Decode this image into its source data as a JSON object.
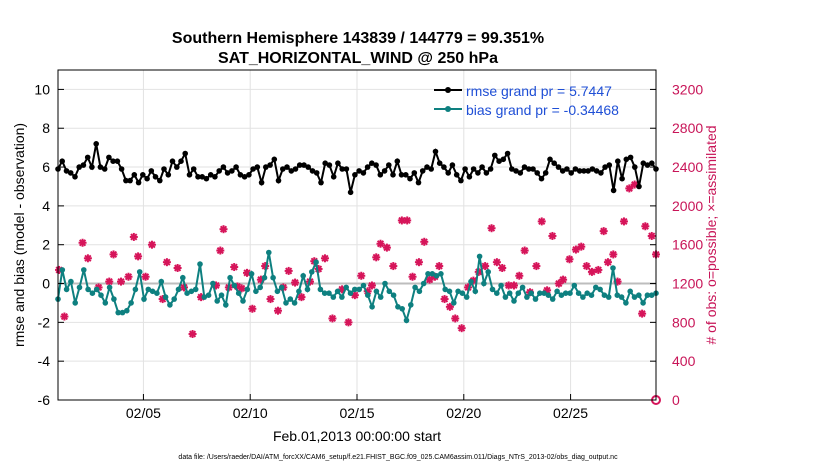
{
  "chart_data": {
    "type": "line",
    "title": "Southern Hemisphere 143839 / 144779 = 99.351%",
    "subtitle": "SAT_HORIZONTAL_WIND @ 250 hPa",
    "xlabel": "Feb.01,2013 00:00:00 start",
    "ylabel_left": "rmse and bias (model - observation)",
    "ylabel_right": "# of obs: o=possible; ×=assimilated",
    "footer": "data file: /Users/raeder/DAI/ATM_forcXX/CAM6_setup/f.e21.FHIST_BGC.f09_025.CAM6assim.011/Diags_NTrS_2013-02/obs_diag_output.nc",
    "xlim": [
      1.0,
      29.0
    ],
    "ylim_left": [
      -6,
      11
    ],
    "ylim_right": [
      0,
      3400
    ],
    "left_ticks": [
      "-6",
      "-4",
      "-2",
      "0",
      "2",
      "4",
      "6",
      "8",
      "10"
    ],
    "right_ticks": [
      "0",
      "400",
      "800",
      "1200",
      "1600",
      "2000",
      "2400",
      "2800",
      "3200"
    ],
    "x_ticks": [
      {
        "pos": 5,
        "label": "02/05"
      },
      {
        "pos": 10,
        "label": "02/10"
      },
      {
        "pos": 15,
        "label": "02/15"
      },
      {
        "pos": 20,
        "label": "02/20"
      },
      {
        "pos": 25,
        "label": "02/25"
      }
    ],
    "grid": true,
    "legend_position": "top-right",
    "colors": {
      "rmse": "#000000",
      "bias": "#0e8080",
      "obs": "#d6155a",
      "right_axis": "#c81558",
      "legend_text": "#1f4fd6",
      "zero_line": "#bdbdbd"
    },
    "series": [
      {
        "name": "rmse grand pr = 5.7447",
        "key": "rmse",
        "axis": "left",
        "values": [
          5.9,
          6.3,
          5.8,
          5.7,
          5.5,
          6.0,
          6.1,
          6.5,
          6.0,
          7.2,
          6.0,
          5.9,
          6.5,
          6.3,
          6.3,
          5.9,
          5.3,
          5.3,
          5.6,
          5.2,
          5.6,
          5.4,
          5.8,
          5.5,
          5.3,
          5.9,
          5.6,
          6.3,
          6.0,
          6.3,
          6.7,
          5.6,
          5.9,
          5.5,
          5.5,
          5.4,
          5.6,
          5.5,
          5.8,
          6.0,
          5.7,
          5.8,
          6.0,
          5.6,
          5.5,
          5.6,
          5.9,
          6.0,
          5.2,
          6.0,
          6.1,
          6.4,
          5.3,
          5.9,
          6.0,
          5.8,
          5.9,
          6.1,
          6.1,
          6.0,
          5.8,
          5.7,
          5.2,
          6.2,
          6.1,
          5.5,
          6.2,
          5.9,
          5.9,
          4.7,
          5.6,
          5.8,
          5.7,
          6.0,
          6.2,
          6.1,
          5.6,
          5.8,
          6.1,
          5.6,
          6.3,
          5.6,
          5.6,
          5.4,
          5.7,
          5.2,
          5.8,
          6.0,
          5.9,
          6.8,
          6.2,
          6.0,
          5.7,
          6.1,
          5.6,
          5.3,
          5.9,
          5.5,
          5.9,
          5.7,
          6.0,
          5.7,
          5.9,
          6.6,
          6.3,
          6.4,
          6.7,
          5.9,
          5.8,
          5.7,
          6.0,
          5.9,
          5.9,
          5.7,
          5.4,
          5.7,
          6.4,
          6.2,
          6.0,
          5.8,
          5.9,
          5.7,
          5.9,
          5.8,
          5.8,
          5.8,
          5.9,
          5.8,
          5.7,
          6.0,
          6.1,
          4.8,
          6.3,
          5.4,
          6.4,
          6.5,
          6.0,
          5.0,
          6.2,
          6.1,
          6.2,
          5.9
        ]
      },
      {
        "name": "bias grand pr = -0.34468",
        "key": "bias",
        "axis": "left",
        "values": [
          -0.8,
          0.7,
          -0.3,
          0.1,
          -1.0,
          -0.2,
          0.7,
          -0.3,
          -0.5,
          -0.3,
          -0.6,
          -1.0,
          -0.2,
          -0.8,
          -1.5,
          -1.5,
          -1.4,
          -1.0,
          -0.3,
          0.6,
          -0.8,
          -0.3,
          -0.4,
          -0.5,
          0.1,
          -0.7,
          -1.1,
          -0.8,
          -0.3,
          0.3,
          -0.5,
          -0.4,
          -0.3,
          1.0,
          -0.7,
          -0.6,
          0.0,
          -0.9,
          -0.6,
          -1.1,
          0.3,
          -0.1,
          -0.5,
          -0.9,
          -0.3,
          0.5,
          -0.4,
          -0.2,
          0.3,
          1.6,
          0.3,
          -0.4,
          -0.2,
          -1.0,
          -0.8,
          -1.0,
          -0.4,
          0.4,
          -0.3,
          0.6,
          1.1,
          -0.3,
          -0.5,
          -0.5,
          -0.7,
          -0.4,
          -0.7,
          -0.2,
          -0.5,
          -0.3,
          -0.3,
          -0.1,
          -0.6,
          -1.2,
          -0.4,
          -0.7,
          0.0,
          -0.4,
          -0.6,
          -1.2,
          -1.3,
          -1.9,
          -1.1,
          -0.2,
          -0.4,
          0.0,
          0.5,
          0.5,
          0.4,
          0.5,
          -0.3,
          -0.4,
          -1.0,
          -0.4,
          -0.5,
          -0.7,
          0.1,
          -0.4,
          1.4,
          0.0,
          0.6,
          -0.3,
          -0.5,
          -0.1,
          -0.7,
          -0.5,
          -0.9,
          -0.5,
          -0.2,
          -0.7,
          -0.5,
          -0.8,
          -0.5,
          -0.5,
          -0.6,
          -0.8,
          -0.4,
          -0.6,
          -0.5,
          -0.5,
          -0.1,
          -0.5,
          -0.7,
          -0.5,
          -0.6,
          -0.2,
          -0.3,
          -0.6,
          -0.7,
          0.8,
          -0.6,
          -0.7,
          -1.0,
          -0.4,
          -0.7,
          -0.6,
          -1.0,
          -0.6,
          -0.6,
          -0.5
        ]
      }
    ],
    "obs_assimilated": {
      "name": "# of obs assimilated",
      "axis": "right",
      "points": [
        [
          1.05,
          1340
        ],
        [
          1.3,
          860
        ],
        [
          2.4,
          1460
        ],
        [
          2.9,
          1160
        ],
        [
          2.15,
          1620
        ],
        [
          3.4,
          1220
        ],
        [
          3.6,
          1500
        ],
        [
          3.95,
          1220
        ],
        [
          4.3,
          1270
        ],
        [
          4.55,
          1680
        ],
        [
          4.75,
          1480
        ],
        [
          5.1,
          1270
        ],
        [
          5.4,
          1600
        ],
        [
          5.9,
          1040
        ],
        [
          6.1,
          1420
        ],
        [
          6.6,
          1360
        ],
        [
          6.9,
          1160
        ],
        [
          7.3,
          680
        ],
        [
          7.7,
          1060
        ],
        [
          8.4,
          1180
        ],
        [
          8.6,
          1540
        ],
        [
          8.75,
          1760
        ],
        [
          9.0,
          1160
        ],
        [
          9.25,
          1370
        ],
        [
          9.4,
          1170
        ],
        [
          9.6,
          1150
        ],
        [
          9.85,
          1310
        ],
        [
          10.1,
          940
        ],
        [
          10.5,
          1240
        ],
        [
          10.7,
          1380
        ],
        [
          10.95,
          1040
        ],
        [
          11.3,
          920
        ],
        [
          11.55,
          1160
        ],
        [
          11.8,
          1330
        ],
        [
          12.1,
          1210
        ],
        [
          12.4,
          1060
        ],
        [
          12.8,
          1220
        ],
        [
          13.0,
          1430
        ],
        [
          13.2,
          1350
        ],
        [
          13.5,
          1460
        ],
        [
          13.85,
          840
        ],
        [
          14.3,
          1140
        ],
        [
          14.6,
          800
        ],
        [
          14.9,
          1080
        ],
        [
          15.2,
          1280
        ],
        [
          15.5,
          1120
        ],
        [
          15.7,
          1180
        ],
        [
          15.9,
          1470
        ],
        [
          16.1,
          1610
        ],
        [
          16.4,
          1570
        ],
        [
          16.7,
          1380
        ],
        [
          17.1,
          1850
        ],
        [
          17.35,
          1850
        ],
        [
          17.6,
          1270
        ],
        [
          17.9,
          1420
        ],
        [
          18.15,
          1630
        ],
        [
          18.4,
          1240
        ],
        [
          18.65,
          1270
        ],
        [
          18.85,
          1380
        ],
        [
          19.1,
          1040
        ],
        [
          19.35,
          960
        ],
        [
          19.6,
          840
        ],
        [
          19.9,
          740
        ],
        [
          20.2,
          1160
        ],
        [
          20.45,
          1230
        ],
        [
          20.7,
          1320
        ],
        [
          21.0,
          1380
        ],
        [
          21.3,
          1770
        ],
        [
          21.55,
          1420
        ],
        [
          21.8,
          1360
        ],
        [
          22.1,
          1180
        ],
        [
          22.35,
          1180
        ],
        [
          22.6,
          1280
        ],
        [
          22.85,
          1540
        ],
        [
          23.1,
          1110
        ],
        [
          23.4,
          1380
        ],
        [
          23.65,
          1840
        ],
        [
          23.9,
          1130
        ],
        [
          24.15,
          1690
        ],
        [
          24.45,
          1200
        ],
        [
          24.65,
          1240
        ],
        [
          24.95,
          1450
        ],
        [
          25.25,
          1550
        ],
        [
          25.5,
          1580
        ],
        [
          25.75,
          1380
        ],
        [
          26.0,
          1320
        ],
        [
          26.3,
          1340
        ],
        [
          26.55,
          1740
        ],
        [
          26.75,
          1420
        ],
        [
          27.0,
          1500
        ],
        [
          27.2,
          1220
        ],
        [
          27.5,
          1840
        ],
        [
          27.75,
          2180
        ],
        [
          28.0,
          2220
        ],
        [
          28.35,
          890
        ],
        [
          28.5,
          1790
        ],
        [
          28.8,
          1690
        ],
        [
          29.0,
          1500
        ]
      ]
    },
    "obs_possible_endpoint": {
      "x": 29.0,
      "value": 0
    }
  }
}
